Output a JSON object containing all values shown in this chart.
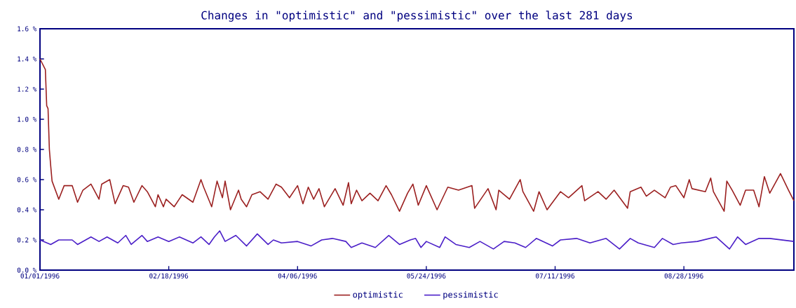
{
  "chart_data": {
    "type": "line",
    "title": "Changes in \"optimistic\" and \"pessimistic\" over the last 281 days",
    "xlim": [
      "1996-01-01",
      "1996-10-08"
    ],
    "ylim": [
      0,
      1.6
    ],
    "xticks": [
      {
        "value": "1996-01-01",
        "label": "01/01/1996"
      },
      {
        "value": "1996-02-18",
        "label": "02/18/1996"
      },
      {
        "value": "1996-04-06",
        "label": "04/06/1996"
      },
      {
        "value": "1996-05-24",
        "label": "05/24/1996"
      },
      {
        "value": "1996-07-11",
        "label": "07/11/1996"
      },
      {
        "value": "1996-08-28",
        "label": "08/28/1996"
      }
    ],
    "yticks": [
      {
        "value": 0,
        "label": "0.0 %"
      },
      {
        "value": 0.2,
        "label": "0.2 %"
      },
      {
        "value": 0.4,
        "label": "0.4 %"
      },
      {
        "value": 0.6,
        "label": "0.6 %"
      },
      {
        "value": 0.8,
        "label": "0.8 %"
      },
      {
        "value": 1.0,
        "label": "1.0 %"
      },
      {
        "value": 1.2,
        "label": "1.2 %"
      },
      {
        "value": 1.4,
        "label": "1.4 %"
      },
      {
        "value": 1.6,
        "label": "1.6 %"
      }
    ],
    "legend": "bottom",
    "grid": false,
    "series": [
      {
        "name": "optimistic",
        "color": "#9b2020",
        "x": [
          "1996-01-01",
          "1996-01-03",
          "1996-01-03T12:00",
          "1996-01-04",
          "1996-01-04T12:00",
          "1996-01-05",
          "1996-01-05T12:00",
          "1996-01-08",
          "1996-01-10",
          "1996-01-13",
          "1996-01-15",
          "1996-01-17",
          "1996-01-20",
          "1996-01-23",
          "1996-01-24",
          "1996-01-27",
          "1996-01-29",
          "1996-02-01",
          "1996-02-03",
          "1996-02-05",
          "1996-02-08",
          "1996-02-10",
          "1996-02-13",
          "1996-02-14",
          "1996-02-16",
          "1996-02-17",
          "1996-02-20",
          "1996-02-23",
          "1996-02-27",
          "1996-03-01",
          "1996-03-02",
          "1996-03-05",
          "1996-03-07",
          "1996-03-09",
          "1996-03-10",
          "1996-03-12",
          "1996-03-15",
          "1996-03-16",
          "1996-03-18",
          "1996-03-20",
          "1996-03-23",
          "1996-03-26",
          "1996-03-29",
          "1996-03-31",
          "1996-04-03",
          "1996-04-06",
          "1996-04-08",
          "1996-04-10",
          "1996-04-12",
          "1996-04-14",
          "1996-04-16",
          "1996-04-20",
          "1996-04-23",
          "1996-04-25",
          "1996-04-26",
          "1996-04-28",
          "1996-04-30",
          "1996-05-03",
          "1996-05-06",
          "1996-05-09",
          "1996-05-11",
          "1996-05-14",
          "1996-05-17",
          "1996-05-19",
          "1996-05-21",
          "1996-05-24",
          "1996-05-28",
          "1996-06-01",
          "1996-06-05",
          "1996-06-10",
          "1996-06-11",
          "1996-06-16",
          "1996-06-19",
          "1996-06-20",
          "1996-06-24",
          "1996-06-28",
          "1996-06-29",
          "1996-07-03",
          "1996-07-05",
          "1996-07-08",
          "1996-07-13",
          "1996-07-16",
          "1996-07-21",
          "1996-07-22",
          "1996-07-27",
          "1996-07-30",
          "1996-08-02",
          "1996-08-07",
          "1996-08-08",
          "1996-08-12",
          "1996-08-14",
          "1996-08-17",
          "1996-08-21",
          "1996-08-23",
          "1996-08-25",
          "1996-08-28",
          "1996-08-30",
          "1996-08-31",
          "1996-09-05",
          "1996-09-07",
          "1996-09-08",
          "1996-09-12",
          "1996-09-13",
          "1996-09-15",
          "1996-09-18",
          "1996-09-20",
          "1996-09-23",
          "1996-09-25",
          "1996-09-27",
          "1996-09-29",
          "1996-10-03",
          "1996-10-06",
          "1996-10-08"
        ],
        "values": [
          1.4,
          1.33,
          1.09,
          1.07,
          0.8,
          0.69,
          0.59,
          0.47,
          0.56,
          0.56,
          0.45,
          0.53,
          0.57,
          0.47,
          0.57,
          0.6,
          0.44,
          0.56,
          0.55,
          0.45,
          0.56,
          0.52,
          0.42,
          0.5,
          0.42,
          0.47,
          0.42,
          0.5,
          0.45,
          0.6,
          0.55,
          0.42,
          0.59,
          0.48,
          0.59,
          0.4,
          0.53,
          0.47,
          0.42,
          0.5,
          0.52,
          0.47,
          0.57,
          0.55,
          0.48,
          0.56,
          0.44,
          0.55,
          0.47,
          0.54,
          0.42,
          0.54,
          0.43,
          0.58,
          0.44,
          0.53,
          0.46,
          0.51,
          0.46,
          0.56,
          0.5,
          0.39,
          0.51,
          0.57,
          0.43,
          0.56,
          0.4,
          0.55,
          0.53,
          0.56,
          0.41,
          0.54,
          0.4,
          0.53,
          0.47,
          0.6,
          0.52,
          0.39,
          0.52,
          0.4,
          0.52,
          0.48,
          0.56,
          0.46,
          0.52,
          0.47,
          0.53,
          0.41,
          0.52,
          0.55,
          0.49,
          0.53,
          0.48,
          0.55,
          0.56,
          0.48,
          0.6,
          0.54,
          0.52,
          0.61,
          0.52,
          0.39,
          0.59,
          0.53,
          0.43,
          0.53,
          0.53,
          0.42,
          0.62,
          0.51,
          0.64,
          0.53,
          0.46
        ]
      },
      {
        "name": "pessimistic",
        "color": "#4b1fc8",
        "x": [
          "1996-01-01",
          "1996-01-05",
          "1996-01-08",
          "1996-01-13",
          "1996-01-15",
          "1996-01-20",
          "1996-01-23",
          "1996-01-26",
          "1996-01-30",
          "1996-02-02",
          "1996-02-04",
          "1996-02-08",
          "1996-02-10",
          "1996-02-14",
          "1996-02-18",
          "1996-02-22",
          "1996-02-27",
          "1996-03-01",
          "1996-03-04",
          "1996-03-06",
          "1996-03-08",
          "1996-03-10",
          "1996-03-14",
          "1996-03-18",
          "1996-03-22",
          "1996-03-26",
          "1996-03-28",
          "1996-03-31",
          "1996-04-06",
          "1996-04-11",
          "1996-04-15",
          "1996-04-19",
          "1996-04-24",
          "1996-04-26",
          "1996-04-30",
          "1996-05-05",
          "1996-05-10",
          "1996-05-14",
          "1996-05-18",
          "1996-05-20",
          "1996-05-22",
          "1996-05-24",
          "1996-05-29",
          "1996-05-31",
          "1996-06-04",
          "1996-06-09",
          "1996-06-13",
          "1996-06-18",
          "1996-06-22",
          "1996-06-26",
          "1996-06-30",
          "1996-07-04",
          "1996-07-10",
          "1996-07-13",
          "1996-07-19",
          "1996-07-24",
          "1996-07-30",
          "1996-08-04",
          "1996-08-08",
          "1996-08-11",
          "1996-08-17",
          "1996-08-20",
          "1996-08-24",
          "1996-08-27",
          "1996-09-02",
          "1996-09-09",
          "1996-09-14",
          "1996-09-17",
          "1996-09-20",
          "1996-09-25",
          "1996-09-29",
          "1996-10-08"
        ],
        "values": [
          0.2,
          0.17,
          0.2,
          0.2,
          0.17,
          0.22,
          0.19,
          0.22,
          0.18,
          0.23,
          0.17,
          0.23,
          0.19,
          0.22,
          0.19,
          0.22,
          0.18,
          0.22,
          0.17,
          0.22,
          0.26,
          0.19,
          0.23,
          0.16,
          0.24,
          0.17,
          0.2,
          0.18,
          0.19,
          0.16,
          0.2,
          0.21,
          0.19,
          0.15,
          0.18,
          0.15,
          0.23,
          0.17,
          0.2,
          0.21,
          0.15,
          0.19,
          0.15,
          0.22,
          0.17,
          0.15,
          0.19,
          0.14,
          0.19,
          0.18,
          0.15,
          0.21,
          0.16,
          0.2,
          0.21,
          0.18,
          0.21,
          0.14,
          0.21,
          0.18,
          0.15,
          0.21,
          0.17,
          0.18,
          0.19,
          0.22,
          0.14,
          0.22,
          0.17,
          0.21,
          0.21,
          0.19
        ]
      }
    ]
  }
}
